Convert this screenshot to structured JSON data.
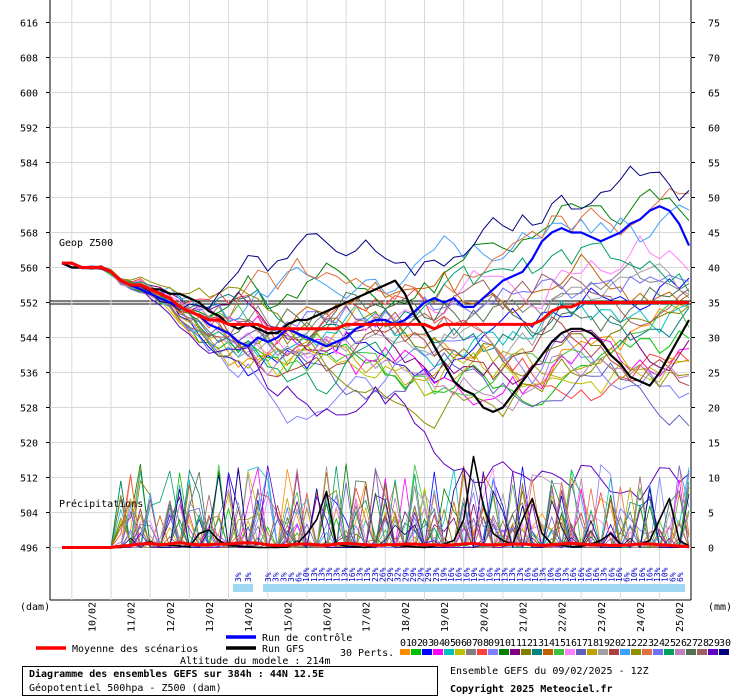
{
  "chart_data": {
    "type": "line",
    "left_axis_label": "(dam)",
    "right_axis_label": "(mm)",
    "left_ticks": [
      "616",
      "608",
      "600",
      "592",
      "584",
      "576",
      "568",
      "560",
      "552",
      "544",
      "536",
      "528",
      "520",
      "512",
      "504",
      "496"
    ],
    "left_tick_values": [
      616,
      608,
      600,
      592,
      584,
      576,
      568,
      560,
      552,
      544,
      536,
      528,
      520,
      512,
      504,
      496
    ],
    "right_ticks": [
      "75",
      "70",
      "65",
      "60",
      "55",
      "50",
      "45",
      "40",
      "35",
      "30",
      "25",
      "20",
      "15",
      "10",
      "5",
      "0"
    ],
    "x_dates": [
      "10/02",
      "11/02",
      "12/02",
      "13/02",
      "14/02",
      "15/02",
      "16/02",
      "17/02",
      "18/02",
      "19/02",
      "20/02",
      "21/02",
      "22/02",
      "23/02",
      "24/02",
      "25/02"
    ],
    "x_range_hours": [
      0,
      384
    ],
    "geop_label": "Geop Z500",
    "precip_label": "Précipitations",
    "mean_geop": [
      561,
      561,
      560,
      560,
      560,
      559,
      557,
      556,
      556,
      555,
      554,
      553,
      551,
      550,
      549,
      548,
      548,
      547,
      547,
      547,
      547,
      546,
      546,
      546,
      546,
      546,
      546,
      546,
      546,
      547,
      547,
      547,
      547,
      547,
      547,
      547,
      547,
      547,
      546,
      547,
      547,
      547,
      547,
      547,
      547,
      547,
      547,
      547,
      547,
      548,
      550,
      551,
      551,
      552,
      552,
      552,
      552,
      552,
      552,
      552,
      552,
      552,
      552,
      552,
      552
    ],
    "control_geop": [
      561,
      560,
      560,
      560,
      560,
      559,
      557,
      556,
      555,
      554,
      553,
      552,
      551,
      550,
      549,
      547,
      546,
      545,
      543,
      542,
      544,
      543,
      544,
      546,
      545,
      544,
      543,
      542,
      543,
      544,
      546,
      547,
      548,
      548,
      547,
      548,
      550,
      552,
      553,
      552,
      553,
      551,
      551,
      553,
      555,
      557,
      558,
      559,
      562,
      566,
      568,
      569,
      568,
      568,
      567,
      566,
      567,
      568,
      570,
      571,
      573,
      574,
      573,
      570,
      565
    ],
    "gfs_geop": [
      561,
      560,
      560,
      560,
      560,
      559,
      557,
      556,
      556,
      555,
      555,
      554,
      554,
      553,
      552,
      550,
      549,
      547,
      546,
      547,
      546,
      545,
      545,
      547,
      548,
      548,
      549,
      550,
      551,
      552,
      553,
      554,
      555,
      556,
      557,
      554,
      549,
      546,
      542,
      538,
      534,
      532,
      531,
      528,
      527,
      528,
      531,
      534,
      537,
      540,
      543,
      545,
      546,
      546,
      545,
      543,
      540,
      538,
      535,
      534,
      533,
      536,
      540,
      544,
      548
    ],
    "mean_precip_mm": [
      0,
      0,
      0,
      0,
      0,
      0,
      0.2,
      0.3,
      0.5,
      0.6,
      0.4,
      0.5,
      0.7,
      0.5,
      0.4,
      0.4,
      0.5,
      0.5,
      0.6,
      0.7,
      0.6,
      0.4,
      0.3,
      0.3,
      0.5,
      0.5,
      0.4,
      0.3,
      0.5,
      0.6,
      0.5,
      0.4,
      0.3,
      0.4,
      0.4,
      0.5,
      0.5,
      0.4,
      0.4,
      0.3,
      0.4,
      0.5,
      0.6,
      0.4,
      0.4,
      0.4,
      0.5,
      0.5,
      0.4,
      0.3,
      0.4,
      0.5,
      0.6,
      0.5,
      0.4,
      0.4,
      0.3,
      0.3,
      0.4,
      0.5,
      0.5,
      0.4,
      0.3,
      0.2,
      0.1
    ],
    "gfs_precip_mm": [
      0,
      0,
      0,
      0,
      0,
      0,
      0,
      0.3,
      0.5,
      0.8,
      0.4,
      0.3,
      0.2,
      0.1,
      2,
      2.5,
      1,
      0.3,
      0.2,
      0.1,
      0,
      0,
      0,
      0.1,
      0.5,
      2,
      4,
      8,
      0.5,
      0.2,
      0.1,
      0,
      0.3,
      0.5,
      0.4,
      0.2,
      0.1,
      0,
      0.2,
      0.5,
      1,
      4,
      13,
      6,
      2,
      1,
      0.5,
      4,
      7,
      2,
      0.5,
      0.3,
      0.1,
      0.2,
      0.5,
      1,
      2,
      0.5,
      0.3,
      0.5,
      1,
      4,
      7,
      1,
      0.2
    ],
    "snow_percentages": [
      "3%",
      "3%",
      "3%",
      "3%",
      "3%",
      "3%",
      "6%",
      "10%",
      "13%",
      "13%",
      "13%",
      "13%",
      "13%",
      "16%",
      "13%",
      "13%",
      "23%",
      "26%",
      "29%",
      "32%",
      "29%",
      "29%",
      "29%",
      "29%",
      "23%",
      "19%",
      "16%",
      "16%",
      "16%",
      "19%",
      "16%",
      "16%",
      "13%",
      "13%",
      "13%",
      "13%",
      "16%",
      "16%",
      "13%",
      "10%",
      "10%",
      "13%",
      "16%",
      "16%",
      "16%",
      "16%",
      "13%",
      "16%",
      "16%",
      "6%",
      "10%",
      "16%",
      "16%",
      "13%",
      "10%",
      "6%",
      "6%"
    ],
    "legend": {
      "mean": "Moyenne des scénarios",
      "control": "Run de contrôle",
      "gfs": "Run GFS",
      "perts": "30 Perts.",
      "pert_numbers": [
        "01",
        "02",
        "03",
        "04",
        "05",
        "06",
        "07",
        "08",
        "09",
        "10",
        "11",
        "12",
        "13",
        "14",
        "15",
        "16",
        "17",
        "18",
        "19",
        "20",
        "21",
        "22",
        "23",
        "24",
        "25",
        "26",
        "27",
        "28",
        "29",
        "30"
      ],
      "pert_colors": [
        "#ff8c00",
        "#00c000",
        "#0000ff",
        "#ff00ff",
        "#00c0c0",
        "#c0c000",
        "#808080",
        "#ff4040",
        "#8080ff",
        "#008000",
        "#800080",
        "#808000",
        "#008080",
        "#c06000",
        "#40c040",
        "#ff80ff",
        "#6060c0",
        "#c0a000",
        "#a0a0a0",
        "#b04040",
        "#40a0ff",
        "#909000",
        "#e07040",
        "#7070ff",
        "#00a060",
        "#c080c0",
        "#507050",
        "#a06060",
        "#6000c0",
        "#000080"
      ],
      "mean_color": "#ff0000",
      "control_color": "#0000ff",
      "gfs_color": "#000000"
    }
  },
  "footer": {
    "altitude": "Altitude du modele : 214m",
    "title": "Diagramme des ensembles GEFS sur 384h : 44N 12.5E",
    "subtitle": "Géopotentiel 500hpa - Z500 (dam)",
    "ensemble": "Ensemble GEFS du 09/02/2025 - 12Z",
    "copyright": "Copyright 2025 Meteociel.fr"
  }
}
